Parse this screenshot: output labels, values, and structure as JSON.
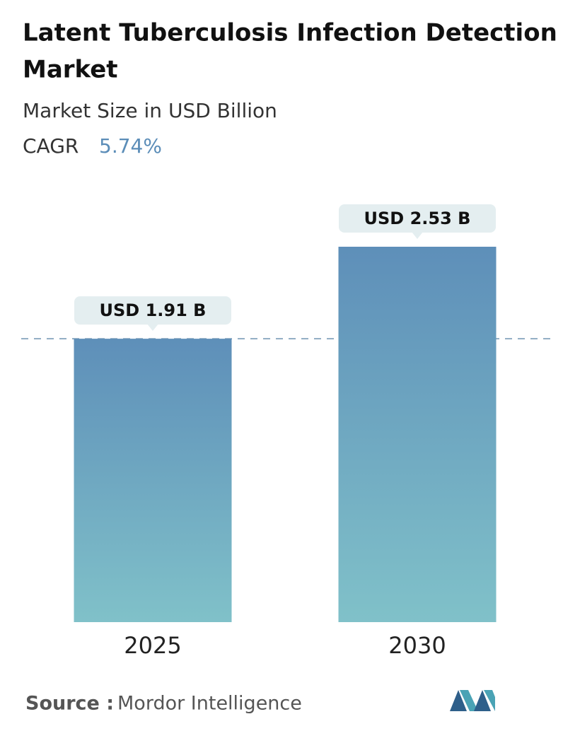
{
  "chart_data": {
    "type": "bar",
    "title": "Latent Tuberculosis Infection Detection Market",
    "subtitle": "Market Size in USD Billion",
    "cagr_label": "CAGR",
    "cagr": "5.74%",
    "categories": [
      "2025",
      "2030"
    ],
    "values": [
      1.91,
      2.53
    ],
    "value_labels": [
      "USD 1.91 B",
      "USD 2.53 B"
    ],
    "color_top": "#5e8fb9",
    "color_bottom": "#80c1c9",
    "source_label": "Source :",
    "source": "Mordor Intelligence"
  }
}
